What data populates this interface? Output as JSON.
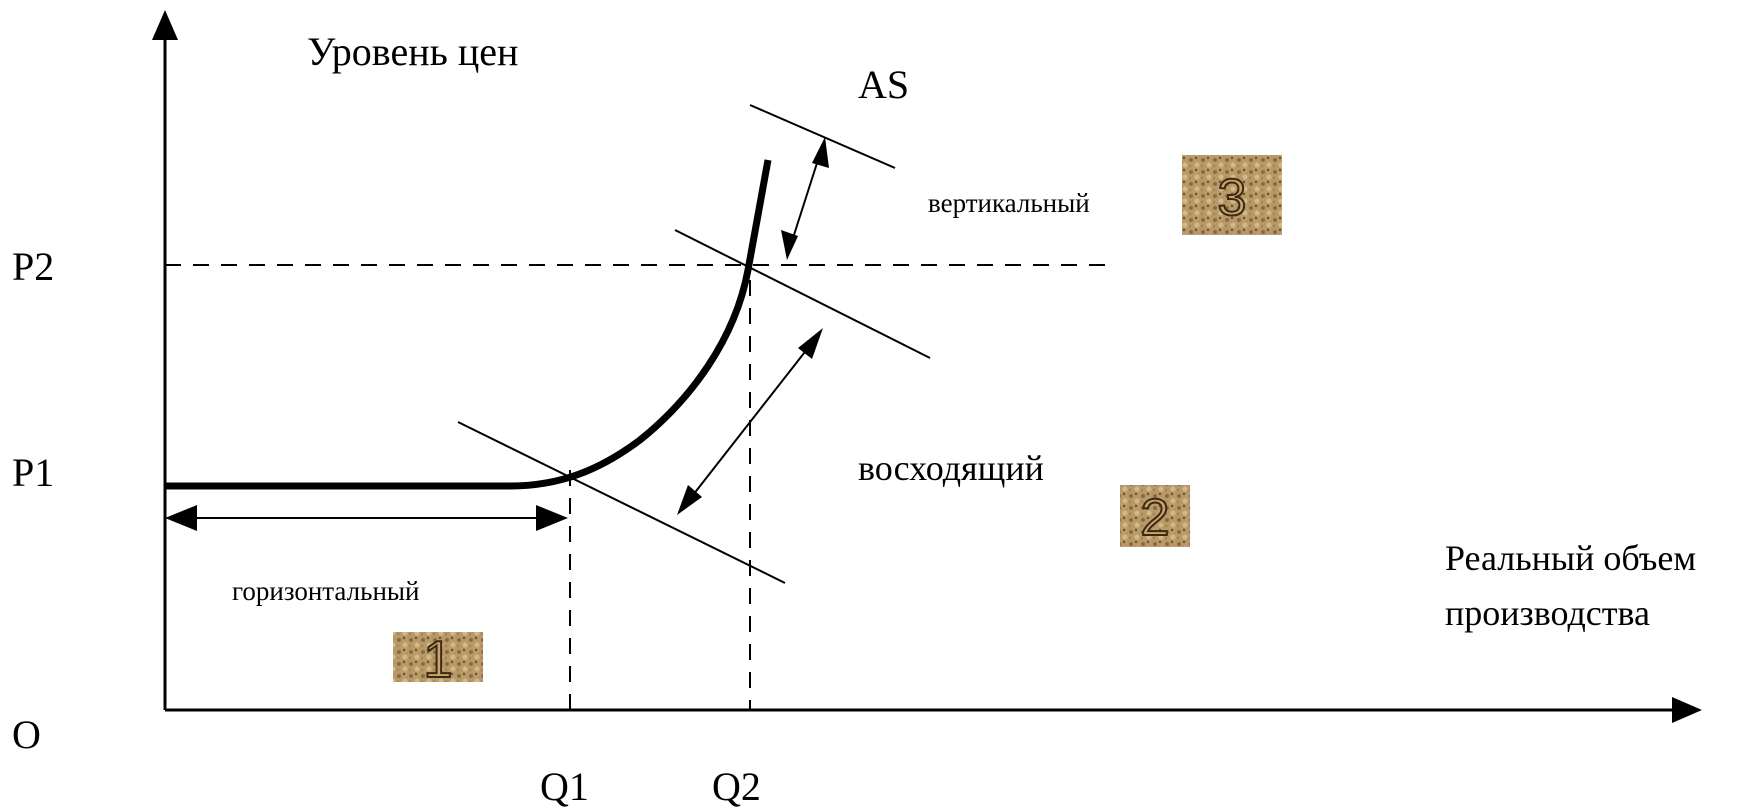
{
  "labels": {
    "price_level": "Уровень цен",
    "curve_name": "AS",
    "real_output_line1": "Реальный объем",
    "real_output_line2": "производства",
    "origin": "O",
    "p1": "P1",
    "p2": "P2",
    "q1": "Q1",
    "q2": "Q2"
  },
  "segments": [
    {
      "name": "горизонтальный",
      "number": "1"
    },
    {
      "name": "восходящий",
      "number": "2"
    },
    {
      "name": "вертикальный",
      "number": "3"
    }
  ],
  "colors": {
    "line": "#000000",
    "badge_fill": "#b89a6a",
    "badge_dark": "#7a5a30"
  }
}
